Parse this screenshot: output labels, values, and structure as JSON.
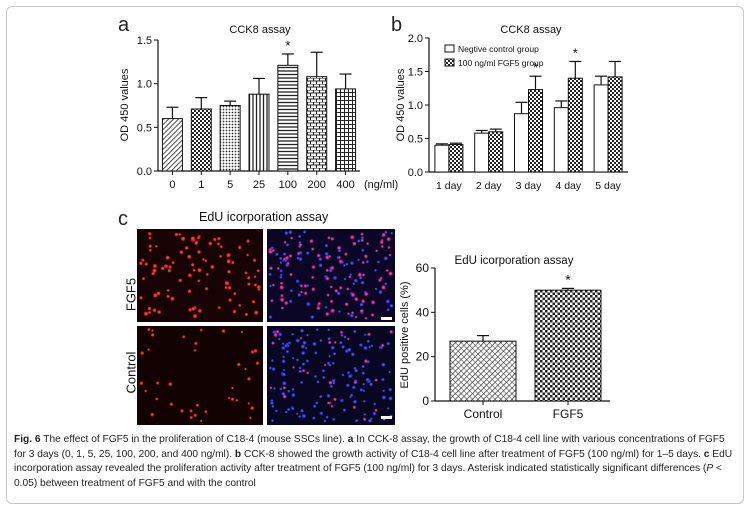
{
  "panels": {
    "a": {
      "letter": "a"
    },
    "b": {
      "letter": "b"
    },
    "c": {
      "letter": "c"
    }
  },
  "chart_data": [
    {
      "id": "a",
      "type": "bar",
      "title": "CCK8 assay",
      "ylabel": "OD 450 values",
      "xlabel": "",
      "categories": [
        "0",
        "1",
        "5",
        "25",
        "100",
        "200",
        "400"
      ],
      "x_unit_label": "(ng/ml)",
      "values": [
        0.6,
        0.71,
        0.75,
        0.88,
        1.21,
        1.08,
        0.94
      ],
      "errors": [
        0.13,
        0.13,
        0.05,
        0.18,
        0.13,
        0.28,
        0.17
      ],
      "significance": [
        false,
        false,
        false,
        false,
        true,
        false,
        false
      ],
      "ylim": [
        0.0,
        1.5
      ],
      "yticks": [
        "0.0",
        "0.5",
        "1.0",
        "1.5"
      ],
      "star": "*"
    },
    {
      "id": "b",
      "type": "bar",
      "title": "CCK8 assay",
      "ylabel": "OD 450 values",
      "categories": [
        "1 day",
        "2 day",
        "3 day",
        "4 day",
        "5 day"
      ],
      "series": [
        {
          "name": "Negtive control group",
          "values": [
            0.4,
            0.58,
            0.87,
            0.96,
            1.3
          ],
          "errors": [
            0.02,
            0.04,
            0.17,
            0.1,
            0.13
          ]
        },
        {
          "name": "100 ng/ml FGF5 group",
          "values": [
            0.41,
            0.6,
            1.23,
            1.4,
            1.42
          ],
          "errors": [
            0.02,
            0.04,
            0.2,
            0.25,
            0.23
          ]
        }
      ],
      "significance": [
        false,
        false,
        true,
        true,
        false
      ],
      "ylim": [
        0.0,
        2.0
      ],
      "yticks": [
        "0.0",
        "0.5",
        "1.0",
        "1.5",
        "2.0"
      ],
      "legend": "top-left",
      "star": "*"
    },
    {
      "id": "c",
      "type": "bar",
      "title": "EdU icorporation assay",
      "ylabel": "EdU positive cells (%)",
      "categories": [
        "Control",
        "FGF5"
      ],
      "values": [
        27,
        50
      ],
      "errors": [
        2.5,
        0.8
      ],
      "significance": [
        false,
        true
      ],
      "ylim": [
        0,
        60
      ],
      "yticks": [
        "0",
        "20",
        "40",
        "60"
      ],
      "star": "*"
    }
  ],
  "micrographs": {
    "title": "EdU icorporation assay",
    "row_labels": [
      "FGF5",
      "Control"
    ]
  },
  "caption": {
    "fig_label": "Fig. 6",
    "intro": "The effect of FGF5 in the proliferation of C18-4 (mouse SSCs line).",
    "a_letter": "a",
    "a_text": "In CCK-8 assay, the growth of C18-4 cell line with various concentrations of FGF5 for 3 days (0, 1, 5, 25, 100, 200, and 400 ng/ml).",
    "b_letter": "b",
    "b_text": "CCK-8 showed the growth activity of C18-4 cell line after treatment of FGF5 (100 ng/ml) for 1–5 days.",
    "c_letter": "c",
    "c_text": "EdU incorporation assay revealed the proliferation activity after treatment of FGF5 (100 ng/ml) for 3 days. Asterisk indicated statistically significant differences (",
    "p_sym": "P",
    "c_text2": " < 0.05) between treatment of FGF5 and with the control"
  }
}
